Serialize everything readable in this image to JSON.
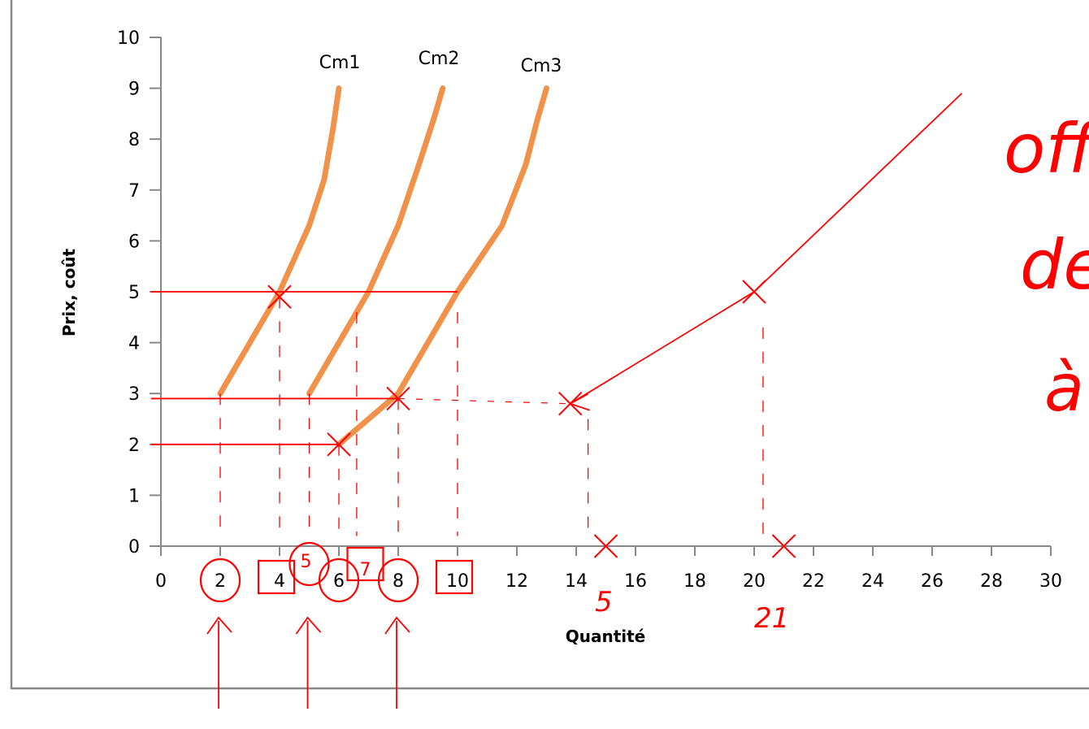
{
  "chart_data": {
    "type": "line",
    "title": "",
    "xlabel": "Quantité",
    "ylabel": "Prix, coût",
    "xlim": [
      0,
      30
    ],
    "ylim": [
      0,
      10
    ],
    "x_ticks": [
      "0",
      "2",
      "4",
      "6",
      "8",
      "10",
      "12",
      "14",
      "16",
      "18",
      "20",
      "22",
      "24",
      "26",
      "28",
      "30"
    ],
    "y_ticks": [
      "0",
      "1",
      "2",
      "3",
      "4",
      "5",
      "6",
      "7",
      "8",
      "9",
      "10"
    ],
    "grid": false,
    "series": [
      {
        "name": "Cm1",
        "color": "#f0924a",
        "points": [
          [
            2,
            3
          ],
          [
            3,
            4
          ],
          [
            4,
            5
          ],
          [
            5,
            6.3
          ],
          [
            5.5,
            7.2
          ],
          [
            5.8,
            8.2
          ],
          [
            6,
            9
          ]
        ]
      },
      {
        "name": "Cm2",
        "color": "#f0924a",
        "points": [
          [
            5,
            3
          ],
          [
            6,
            4
          ],
          [
            7,
            5
          ],
          [
            8,
            6.3
          ],
          [
            8.7,
            7.5
          ],
          [
            9.2,
            8.4
          ],
          [
            9.5,
            9
          ]
        ]
      },
      {
        "name": "Cm3",
        "color": "#f0924a",
        "points": [
          [
            6,
            2
          ],
          [
            7,
            2.5
          ],
          [
            8,
            3
          ],
          [
            9,
            4
          ],
          [
            10,
            5
          ],
          [
            11.5,
            6.3
          ],
          [
            12.3,
            7.5
          ],
          [
            12.7,
            8.4
          ],
          [
            13,
            9
          ]
        ]
      }
    ],
    "annotations": {
      "color": "#ff0000",
      "handwritten_text": [
        "offre",
        "de l'in",
        "à",
        "5",
        "21"
      ],
      "supply_points": [
        [
          6,
          2
        ],
        [
          8,
          2.9
        ],
        [
          13.8,
          2.8
        ],
        [
          20,
          5
        ],
        [
          27,
          8.9
        ]
      ],
      "price_levels": [
        2,
        2.9,
        5
      ],
      "marked_x": [
        "2",
        "4",
        "5",
        "6",
        "7",
        "8",
        "10"
      ],
      "x_marks": [
        15,
        21
      ]
    }
  }
}
